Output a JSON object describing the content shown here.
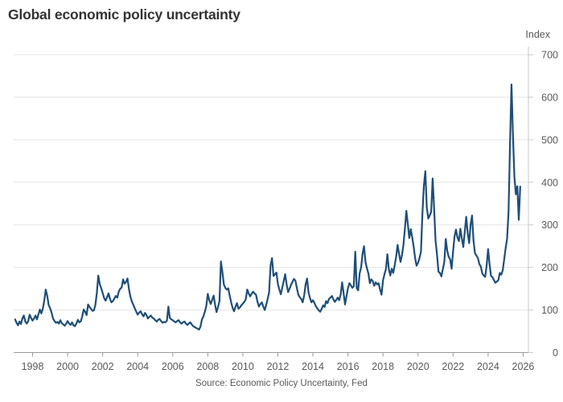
{
  "title": "Global economic policy uncertainty",
  "axis_unit_label": "Index",
  "source": "Source: Economic Policy Uncertainty, Fed",
  "colors": {
    "line": "#1f4e79",
    "grid": "#e4e4e4",
    "axis": "#9a9a9a",
    "axis_right": "#c9c9c9",
    "tick_label": "#595959",
    "title": "#333333"
  },
  "chart_data": {
    "type": "line",
    "title": "Global economic policy uncertainty",
    "xlabel": "",
    "ylabel": "Index",
    "legend": "none",
    "grid": "horizontal",
    "xlim": [
      1996.92,
      2026.3
    ],
    "ylim": [
      0,
      700
    ],
    "x_ticks": [
      1998,
      2000,
      2002,
      2004,
      2006,
      2008,
      2010,
      2012,
      2014,
      2016,
      2018,
      2020,
      2022,
      2024,
      2026
    ],
    "y_ticks": [
      0,
      100,
      200,
      300,
      400,
      500,
      600,
      700
    ],
    "series": [
      {
        "name": "Global economic policy uncertainty index",
        "start": "1997-01",
        "frequency": "monthly",
        "values": [
          78,
          70,
          64,
          73,
          67,
          80,
          87,
          73,
          68,
          74,
          89,
          81,
          75,
          80,
          87,
          78,
          90,
          101,
          92,
          103,
          122,
          148,
          134,
          112,
          104,
          94,
          80,
          74,
          70,
          72,
          68,
          76,
          69,
          66,
          63,
          68,
          74,
          68,
          65,
          71,
          64,
          62,
          68,
          77,
          71,
          73,
          85,
          101,
          96,
          88,
          113,
          107,
          103,
          98,
          99,
          112,
          140,
          181,
          161,
          151,
          140,
          128,
          122,
          130,
          139,
          126,
          118,
          121,
          127,
          133,
          129,
          143,
          150,
          153,
          172,
          162,
          166,
          174,
          149,
          131,
          120,
          112,
          104,
          96,
          89,
          94,
          97,
          90,
          85,
          93,
          88,
          80,
          84,
          87,
          82,
          80,
          76,
          73,
          77,
          79,
          74,
          70,
          72,
          71,
          75,
          108,
          81,
          78,
          76,
          73,
          71,
          74,
          76,
          71,
          68,
          71,
          73,
          68,
          65,
          68,
          71,
          66,
          62,
          60,
          58,
          56,
          54,
          61,
          78,
          85,
          96,
          110,
          138,
          123,
          114,
          124,
          134,
          112,
          95,
          107,
          121,
          214,
          189,
          160,
          152,
          148,
          151,
          134,
          118,
          105,
          97,
          108,
          116,
          103,
          106,
          111,
          115,
          119,
          125,
          148,
          139,
          132,
          138,
          143,
          139,
          136,
          120,
          108,
          114,
          118,
          108,
          100,
          112,
          126,
          142,
          205,
          222,
          180,
          184,
          188,
          161,
          148,
          137,
          152,
          168,
          184,
          160,
          142,
          150,
          159,
          166,
          173,
          169,
          152,
          136,
          130,
          126,
          118,
          134,
          160,
          174,
          141,
          128,
          118,
          123,
          117,
          109,
          104,
          99,
          96,
          103,
          111,
          107,
          121,
          116,
          126,
          129,
          133,
          125,
          119,
          124,
          129,
          123,
          136,
          165,
          140,
          113,
          132,
          151,
          163,
          158,
          152,
          156,
          237,
          152,
          146,
          186,
          200,
          232,
          250,
          213,
          198,
          186,
          163,
          172,
          168,
          157,
          165,
          160,
          163,
          148,
          136,
          169,
          184,
          196,
          231,
          196,
          181,
          197,
          187,
          205,
          225,
          253,
          232,
          213,
          229,
          253,
          291,
          333,
          302,
          269,
          290,
          271,
          249,
          222,
          204,
          211,
          222,
          237,
          326,
          392,
          426,
          341,
          315,
          322,
          331,
          409,
          340,
          263,
          230,
          190,
          187,
          179,
          196,
          213,
          267,
          239,
          225,
          219,
          197,
          238,
          273,
          289,
          270,
          262,
          291,
          268,
          248,
          284,
          319,
          281,
          257,
          301,
          322,
          263,
          233,
          228,
          222,
          208,
          202,
          186,
          181,
          178,
          205,
          243,
          207,
          180,
          177,
          170,
          164,
          167,
          170,
          187,
          183,
          193,
          219,
          245,
          268,
          331,
          490,
          630,
          513,
          413,
          372,
          391,
          312,
          390
        ]
      }
    ]
  }
}
